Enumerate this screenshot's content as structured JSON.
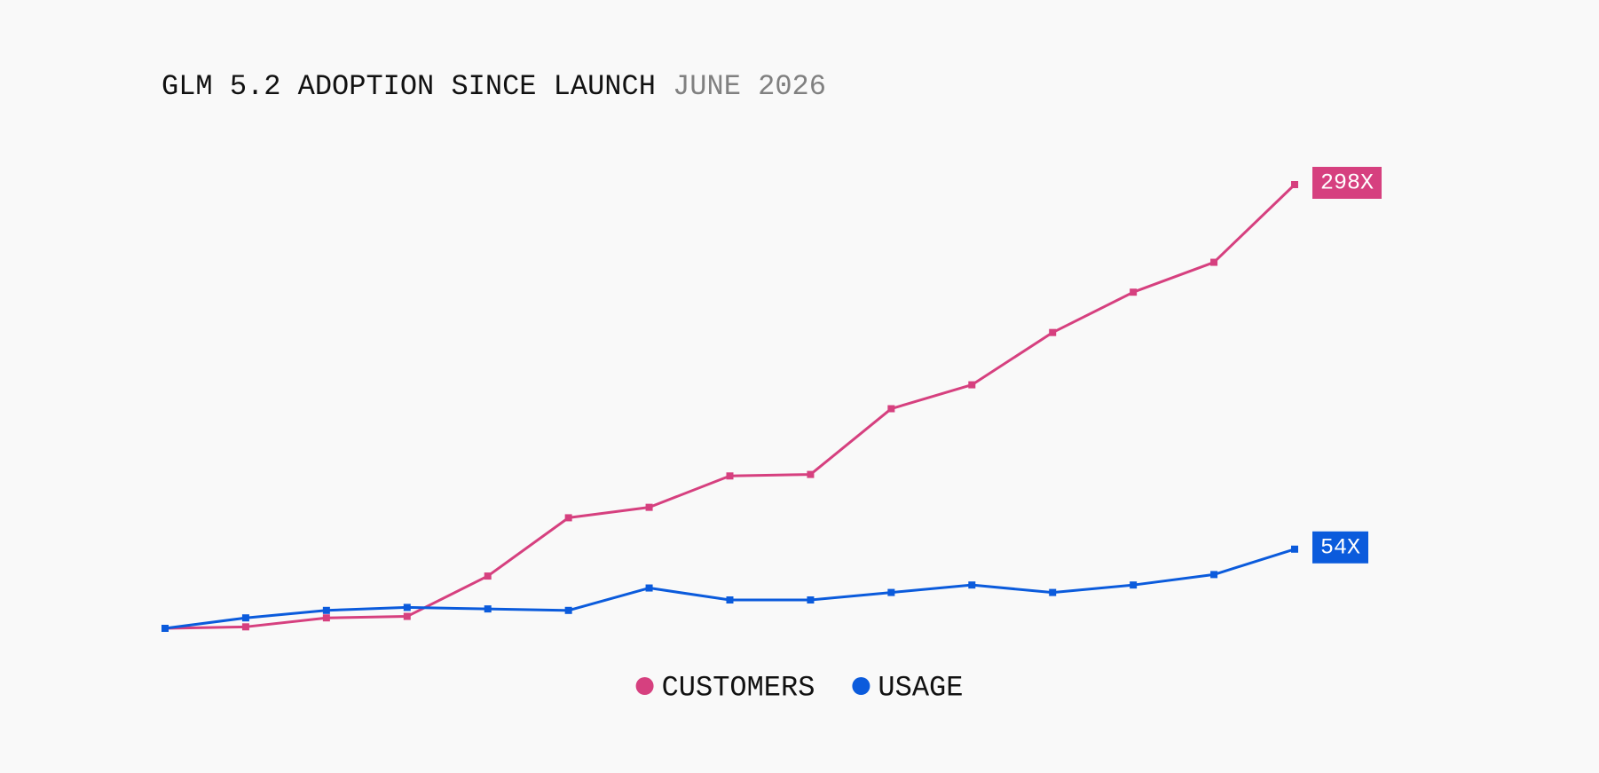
{
  "chart_data": {
    "type": "line",
    "title": "GLM 5.2 ADOPTION SINCE LAUNCH",
    "subtitle": "JUNE 2026",
    "categories": [
      null,
      null,
      null,
      null,
      null,
      null,
      null,
      null,
      null,
      null,
      null,
      null,
      null,
      null,
      null
    ],
    "series": [
      {
        "name": "CUSTOMERS",
        "color": "#d6407f",
        "values": [
          1,
          2,
          8,
          9,
          36,
          75,
          82,
          103,
          104,
          148,
          164,
          199,
          226,
          246,
          298
        ],
        "value_labels": [
          null,
          null,
          null,
          null,
          null,
          null,
          null,
          null,
          null,
          null,
          null,
          null,
          null,
          null,
          "298X"
        ]
      },
      {
        "name": "USAGE",
        "color": "#0b5bdc",
        "values": [
          1,
          8,
          13,
          15,
          14,
          13,
          28,
          20,
          20,
          25,
          30,
          25,
          30,
          37,
          54
        ],
        "value_labels": [
          null,
          null,
          null,
          null,
          null,
          null,
          null,
          null,
          null,
          null,
          null,
          null,
          null,
          null,
          "54X"
        ]
      }
    ]
  }
}
